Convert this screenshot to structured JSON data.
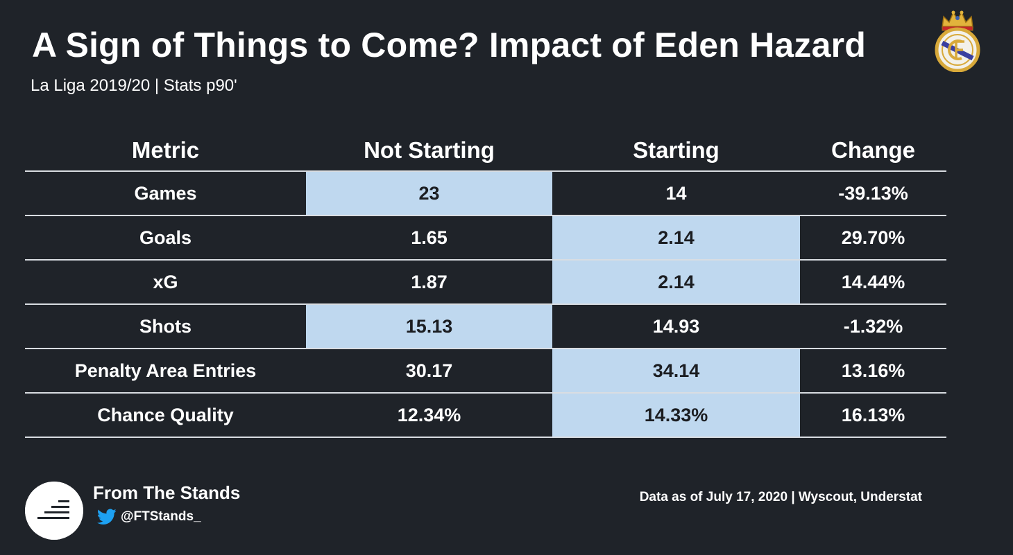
{
  "header": {
    "title": "A Sign of Things to Come? Impact of Eden Hazard",
    "subtitle": "La Liga 2019/20 | Stats p90'"
  },
  "chart_data": {
    "type": "table",
    "columns": [
      "Metric",
      "Not Starting",
      "Starting",
      "Change"
    ],
    "rows": [
      {
        "metric": "Games",
        "not_starting": "23",
        "starting": "14",
        "change": "-39.13%",
        "highlight": "not_starting"
      },
      {
        "metric": "Goals",
        "not_starting": "1.65",
        "starting": "2.14",
        "change": "29.70%",
        "highlight": "starting"
      },
      {
        "metric": "xG",
        "not_starting": "1.87",
        "starting": "2.14",
        "change": "14.44%",
        "highlight": "starting"
      },
      {
        "metric": "Shots",
        "not_starting": "15.13",
        "starting": "14.93",
        "change": "-1.32%",
        "highlight": "not_starting"
      },
      {
        "metric": "Penalty Area Entries",
        "not_starting": "30.17",
        "starting": "34.14",
        "change": "13.16%",
        "highlight": "starting"
      },
      {
        "metric": "Chance Quality",
        "not_starting": "12.34%",
        "starting": "14.33%",
        "change": "16.13%",
        "highlight": "starting"
      }
    ],
    "highlight_color": "#bfd8ef"
  },
  "footer": {
    "brand": "From The Stands",
    "handle": "@FTStands_",
    "source": "Data as of July 17, 2020 | Wyscout, Understat"
  },
  "icons": {
    "crest": "real-madrid-crest-icon",
    "logo": "from-the-stands-logo-icon",
    "twitter": "twitter-bird-icon"
  },
  "colors": {
    "background": "#1f2329",
    "text": "#ffffff",
    "highlight": "#bfd8ef",
    "twitter": "#1da1f2"
  }
}
